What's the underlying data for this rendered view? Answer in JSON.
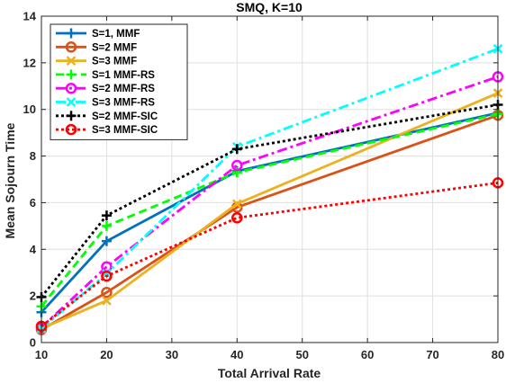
{
  "chart_data": {
    "type": "line",
    "title": "SMQ, K=10",
    "xlabel": "Total Arrival Rate",
    "ylabel": "Mean Sojourn Time",
    "xlim": [
      10,
      80
    ],
    "ylim": [
      0,
      14
    ],
    "xticks": [
      10,
      20,
      30,
      40,
      50,
      60,
      70,
      80
    ],
    "yticks": [
      0,
      2,
      4,
      6,
      8,
      10,
      12,
      14
    ],
    "grid": true,
    "legend_position": "top-left",
    "x": [
      10,
      20,
      40,
      80
    ],
    "series": [
      {
        "name": "S=1, MMF",
        "values": [
          1.3,
          4.35,
          7.35,
          9.85
        ],
        "color": "#0072BD",
        "dash": "solid",
        "marker": "plus"
      },
      {
        "name": "S=2 MMF",
        "values": [
          0.55,
          2.15,
          5.8,
          9.75
        ],
        "color": "#D95319",
        "dash": "solid",
        "marker": "circle"
      },
      {
        "name": "S=3 MMF",
        "values": [
          0.6,
          1.8,
          5.95,
          10.7
        ],
        "color": "#EDB120",
        "dash": "solid",
        "marker": "x"
      },
      {
        "name": "S=1 MMF-RS",
        "values": [
          1.55,
          5.0,
          7.3,
          9.8
        ],
        "color": "#00FF00",
        "dash": "dash",
        "marker": "plus"
      },
      {
        "name": "S=2 MMF-RS",
        "values": [
          0.65,
          3.25,
          7.6,
          11.4
        ],
        "color": "#FF00FF",
        "dash": "dashdot",
        "marker": "circle"
      },
      {
        "name": "S=3 MMF-RS",
        "values": [
          0.6,
          2.95,
          8.4,
          12.6
        ],
        "color": "#00FFFF",
        "dash": "dashdot",
        "marker": "x"
      },
      {
        "name": "S=2 MMF-SIC",
        "values": [
          1.95,
          5.45,
          8.3,
          10.2
        ],
        "color": "#000000",
        "dash": "dot",
        "marker": "plus"
      },
      {
        "name": "S=3 MMF-SIC",
        "values": [
          0.7,
          2.85,
          5.35,
          6.85
        ],
        "color": "#FF0000",
        "dash": "dot",
        "marker": "circle"
      }
    ]
  }
}
